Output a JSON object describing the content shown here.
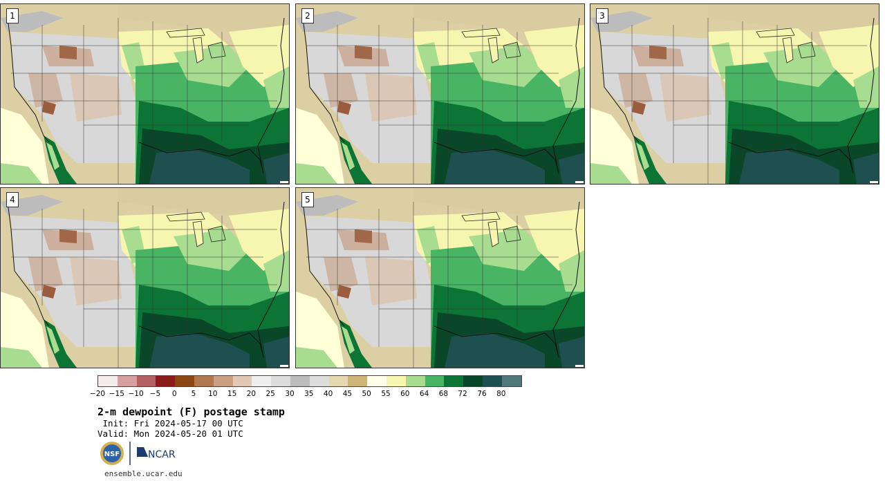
{
  "panels": [
    {
      "label": "1"
    },
    {
      "label": "2"
    },
    {
      "label": "3"
    },
    {
      "label": "4"
    },
    {
      "label": "5"
    }
  ],
  "colorbar": {
    "colors": [
      "#f4ecec",
      "#d4a0a0",
      "#b46060",
      "#8c1c1c",
      "#8c4614",
      "#b07850",
      "#c8a084",
      "#e0c8b4",
      "#eeeeee",
      "#dcdcdc",
      "#bcbcbc",
      "#dcdcdc",
      "#e4d8b0",
      "#cdb478",
      "#ffffea",
      "#f6f6b0",
      "#a8dc90",
      "#48b464",
      "#0c7434",
      "#0a4628",
      "#1e5050",
      "#507878"
    ],
    "ticks": [
      "−20",
      "−15",
      "−10",
      "−5",
      "0",
      "5",
      "10",
      "15",
      "20",
      "25",
      "30",
      "35",
      "40",
      "45",
      "50",
      "55",
      "60",
      "64",
      "68",
      "72",
      "76",
      "80"
    ]
  },
  "title": "2-m dewpoint (F) postage stamp",
  "init": " Init: Fri 2024-05-17 00 UTC",
  "valid": "Valid: Mon 2024-05-20 01 UTC",
  "logos": {
    "nsf": "NSF",
    "ncar": "NCAR"
  },
  "url": "ensemble.ucar.edu"
}
